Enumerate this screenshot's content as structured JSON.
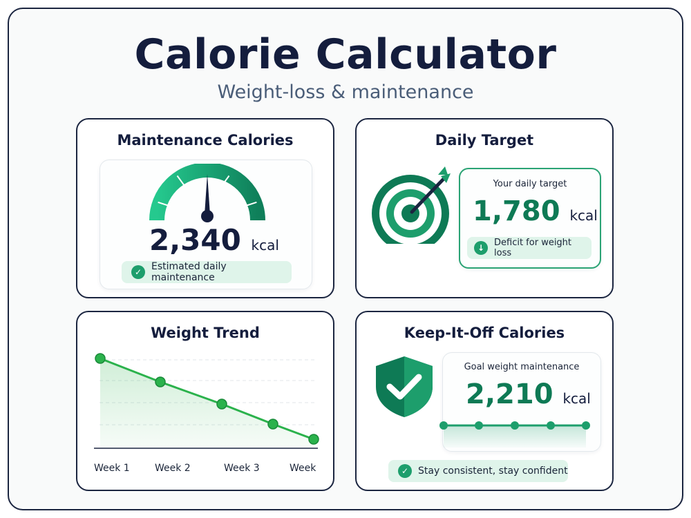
{
  "header": {
    "title": "Calorie Calculator",
    "subtitle": "Weight-loss & maintenance"
  },
  "maintenance": {
    "title": "Maintenance Calories",
    "value": "2,340",
    "unit": "kcal",
    "badge": "Estimated daily maintenance"
  },
  "daily_target": {
    "title": "Daily Target",
    "label": "Your daily target",
    "value": "1,780",
    "unit": "kcal",
    "badge": "Deficit for weight loss"
  },
  "weight_trend": {
    "title": "Weight Trend",
    "x_labels": [
      "Week 1",
      "Week 2",
      "Week 3",
      "Week"
    ]
  },
  "keep_off": {
    "title": "Keep-It-Off Calories",
    "label": "Goal weight maintenance",
    "value": "2,210",
    "unit": "kcal",
    "badge": "Stay consistent, stay confident"
  },
  "colors": {
    "accent": "#1d9e6c",
    "dark_green": "#0e7a55",
    "line_green": "#2bb24c",
    "navy": "#141d3d"
  },
  "icons": [
    "gauge-icon",
    "check-icon",
    "target-icon",
    "arrow-down-icon",
    "shield-check-icon"
  ]
}
